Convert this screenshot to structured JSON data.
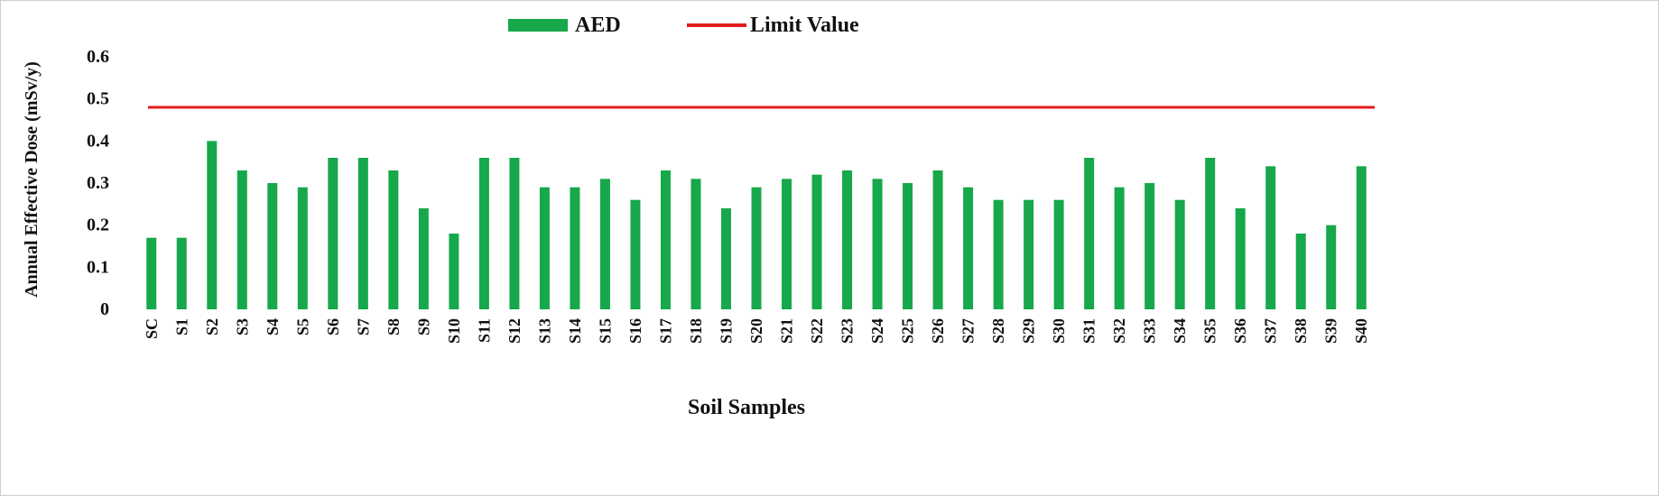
{
  "chart_data": {
    "type": "bar",
    "title": "",
    "xlabel": "Soil Samples",
    "ylabel": "Annual Effective Dose  (mSv/y)",
    "ylim": [
      0,
      0.6
    ],
    "yticks": [
      "0",
      "0.1",
      "0.2",
      "0.3",
      "0.4",
      "0.5",
      "0.6"
    ],
    "grid": false,
    "legend_position": "top-center",
    "categories": [
      "SC",
      "S1",
      "S2",
      "S3",
      "S4",
      "S5",
      "S6",
      "S7",
      "S8",
      "S9",
      "S10",
      "S11",
      "S12",
      "S13",
      "S14",
      "S15",
      "S16",
      "S17",
      "S18",
      "S19",
      "S20",
      "S21",
      "S22",
      "S23",
      "S24",
      "S25",
      "S26",
      "S27",
      "S28",
      "S29",
      "S30",
      "S31",
      "S32",
      "S33",
      "S34",
      "S35",
      "S36",
      "S37",
      "S38",
      "S39",
      "S40"
    ],
    "series": [
      {
        "name": "AED",
        "type": "bar",
        "color": "#16a84a",
        "values": [
          0.17,
          0.17,
          0.4,
          0.33,
          0.3,
          0.29,
          0.36,
          0.36,
          0.33,
          0.24,
          0.18,
          0.36,
          0.36,
          0.29,
          0.29,
          0.31,
          0.26,
          0.33,
          0.31,
          0.24,
          0.29,
          0.31,
          0.32,
          0.33,
          0.31,
          0.3,
          0.33,
          0.29,
          0.26,
          0.26,
          0.26,
          0.36,
          0.29,
          0.3,
          0.26,
          0.36,
          0.24,
          0.34,
          0.18,
          0.2,
          0.34
        ]
      },
      {
        "name": "Limit Value",
        "type": "line",
        "color": "#e31b1b",
        "value": 0.48
      }
    ]
  }
}
